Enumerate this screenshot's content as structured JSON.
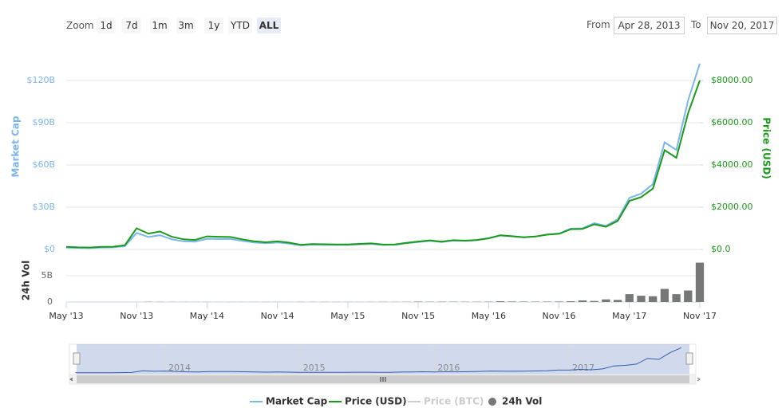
{
  "controls": {
    "zoom_label": "Zoom",
    "zoom_buttons": [
      "1d",
      "7d",
      "1m",
      "3m",
      "1y",
      "YTD",
      "ALL"
    ],
    "active": "ALL",
    "from_label": "From",
    "from": "Apr 28, 2013",
    "to_label": "To",
    "to": "Nov 20, 2017"
  },
  "chart_data": [
    {
      "type": "line",
      "x": [
        "2013-05",
        "2013-06",
        "2013-07",
        "2013-08",
        "2013-09",
        "2013-10",
        "2013-11",
        "2013-12",
        "2014-01",
        "2014-02",
        "2014-03",
        "2014-04",
        "2014-05",
        "2014-06",
        "2014-07",
        "2014-08",
        "2014-09",
        "2014-10",
        "2014-11",
        "2014-12",
        "2015-01",
        "2015-02",
        "2015-03",
        "2015-04",
        "2015-05",
        "2015-06",
        "2015-07",
        "2015-08",
        "2015-09",
        "2015-10",
        "2015-11",
        "2015-12",
        "2016-01",
        "2016-02",
        "2016-03",
        "2016-04",
        "2016-05",
        "2016-06",
        "2016-07",
        "2016-08",
        "2016-09",
        "2016-10",
        "2016-11",
        "2016-12",
        "2017-01",
        "2017-02",
        "2017-03",
        "2017-04",
        "2017-05",
        "2017-06",
        "2017-07",
        "2017-08",
        "2017-09",
        "2017-10",
        "2017-11"
      ],
      "series": [
        {
          "name": "Market Cap",
          "color": "#7cb5ec",
          "values": [
            1330000000,
            1120000000,
            1020000000,
            1370000000,
            1500000000,
            2320000000,
            11700000000,
            8850000000,
            10100000000,
            7200000000,
            5800000000,
            5500000000,
            7600000000,
            7400000000,
            7400000000,
            6050000000,
            4950000000,
            4350000000,
            4900000000,
            4160000000,
            2880000000,
            3370000000,
            3260000000,
            3150000000,
            3170000000,
            3600000000,
            3900000000,
            3170000000,
            3270000000,
            4410000000,
            5290000000,
            6100000000,
            5290000000,
            6290000000,
            6030000000,
            6540000000,
            7790000000,
            9920000000,
            9310000000,
            8630000000,
            9210000000,
            10600000000,
            11300000000,
            14800000000,
            15000000000,
            18600000000,
            16800000000,
            21300000000,
            36600000000,
            39700000000,
            46400000000,
            76100000000,
            70700000000,
            105800000000,
            132000000000
          ]
        },
        {
          "name": "Price (USD)",
          "color": "#1a9a1a",
          "axis": "y2",
          "values": [
            120,
            100,
            90,
            120,
            130,
            200,
            1000,
            750,
            850,
            600,
            480,
            450,
            620,
            600,
            590,
            480,
            390,
            340,
            380,
            320,
            220,
            255,
            245,
            235,
            235,
            265,
            285,
            230,
            235,
            315,
            375,
            430,
            370,
            437,
            416,
            448,
            530,
            670,
            625,
            575,
            610,
            700,
            740,
            960,
            970,
            1190,
            1070,
            1350,
            2300,
            2480,
            2880,
            4700,
            4340,
            6450,
            8000
          ]
        }
      ],
      "hidden_series": [
        {
          "name": "Price (BTC)",
          "color": "#cccccc"
        }
      ],
      "ylabel": "Market Cap",
      "y2label": "Price (USD)",
      "ylim": [
        0,
        150000000000
      ],
      "yticks": [
        {
          "value": 0,
          "label": "$0"
        },
        {
          "value": 30000000000,
          "label": "$30B"
        },
        {
          "value": 60000000000,
          "label": "$60B"
        },
        {
          "value": 90000000000,
          "label": "$90B"
        },
        {
          "value": 120000000000,
          "label": "$120B"
        }
      ],
      "y2lim": [
        0,
        10000
      ],
      "y2ticks": [
        {
          "value": 0,
          "label": "$0.0"
        },
        {
          "value": 2000,
          "label": "$2000.00"
        },
        {
          "value": 4000,
          "label": "$4000.00"
        },
        {
          "value": 6000,
          "label": "$6000.00"
        },
        {
          "value": 8000,
          "label": "$8000.00"
        }
      ],
      "xticks": [
        {
          "value": "2013-05",
          "label": "May '13"
        },
        {
          "value": "2013-11",
          "label": "Nov '13"
        },
        {
          "value": "2014-05",
          "label": "May '14"
        },
        {
          "value": "2014-11",
          "label": "Nov '14"
        },
        {
          "value": "2015-05",
          "label": "May '15"
        },
        {
          "value": "2015-11",
          "label": "Nov '15"
        },
        {
          "value": "2016-05",
          "label": "May '16"
        },
        {
          "value": "2016-11",
          "label": "Nov '16"
        },
        {
          "value": "2017-05",
          "label": "May '17"
        },
        {
          "value": "2017-11",
          "label": "Nov '17"
        }
      ],
      "grid": true,
      "legend": "bottom"
    },
    {
      "type": "bar",
      "ylabel": "24h Vol",
      "series": [
        {
          "name": "24h Vol",
          "color": "#777777",
          "values": [
            null,
            null,
            null,
            null,
            null,
            null,
            null,
            40000000,
            30000000,
            25000000,
            20000000,
            15000000,
            20000000,
            15000000,
            10000000,
            12000000,
            20000000,
            25000000,
            20000000,
            15000000,
            30000000,
            25000000,
            30000000,
            25000000,
            20000000,
            20000000,
            25000000,
            40000000,
            25000000,
            40000000,
            80000000,
            50000000,
            60000000,
            55000000,
            50000000,
            50000000,
            70000000,
            150000000,
            100000000,
            80000000,
            70000000,
            80000000,
            100000000,
            150000000,
            300000000,
            200000000,
            500000000,
            400000000,
            1500000000,
            1200000000,
            1100000000,
            2500000000,
            1500000000,
            2200000000,
            7500000000
          ]
        }
      ],
      "ylim": [
        0,
        8500000000
      ],
      "yticks": [
        0,
        {
          "value": 5000000000,
          "label": "5B"
        }
      ],
      "grid": true
    }
  ],
  "navigator": {
    "xticks": [
      {
        "value": "2014-01",
        "label": "2014"
      },
      {
        "value": "2015-01",
        "label": "2015"
      },
      {
        "value": "2016-01",
        "label": "2016"
      },
      {
        "value": "2017-01",
        "label": "2017"
      }
    ]
  }
}
